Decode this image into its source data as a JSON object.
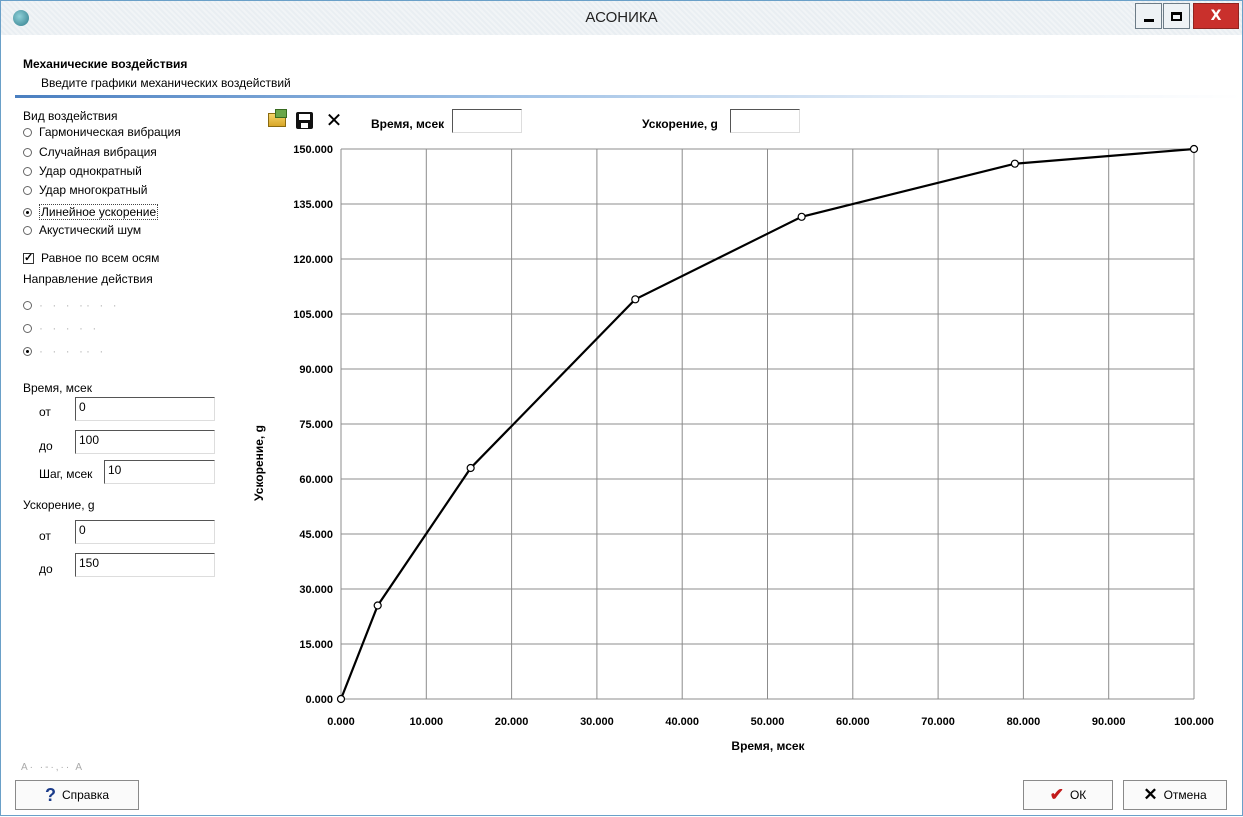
{
  "window": {
    "title": "АСОНИКА"
  },
  "header": {
    "title": "Механические воздействия",
    "subtitle": "Введите графики механических воздействий"
  },
  "left_panel": {
    "impact_type_label": "Вид воздействия",
    "impact_types": [
      {
        "label": "Гармоническая вибрация",
        "selected": false
      },
      {
        "label": "Случайная вибрация",
        "selected": false
      },
      {
        "label": "Удар однократный",
        "selected": false
      },
      {
        "label": "Удар многократный",
        "selected": false
      },
      {
        "label": "Линейное ускорение",
        "selected": true
      },
      {
        "label": "Акустический шум",
        "selected": false
      }
    ],
    "equal_all_axes": {
      "label": "Равное по всем осям",
      "checked": true
    },
    "direction_label": "Направление действия",
    "direction_options": [
      {
        "label": "· · · ·· · ·",
        "selected": false
      },
      {
        "label": "· · · · ·",
        "selected": false
      },
      {
        "label": "· · · ·· ·",
        "selected": true
      }
    ],
    "time": {
      "label": "Время, мсек",
      "from_label": "от",
      "from_value": "0",
      "to_label": "до",
      "to_value": "100",
      "step_label": "Шаг, мсек",
      "step_value": "10"
    },
    "accel": {
      "label": "Ускорение, g",
      "from_label": "от",
      "from_value": "0",
      "to_label": "до",
      "to_value": "150"
    },
    "corner_note": "A· ·-·,·· A"
  },
  "toolbar": {
    "open_icon": "folder-open-icon",
    "save_icon": "floppy-disk-icon",
    "clear_icon": "x-icon",
    "time_label": "Время, мсек",
    "time_value": "",
    "accel_label": "Ускорение, g",
    "accel_value": ""
  },
  "chart_data": {
    "type": "line",
    "title": "",
    "xlabel": "Время, мсек",
    "ylabel": "Ускорение, g",
    "xlim": [
      0,
      100
    ],
    "ylim": [
      0,
      150
    ],
    "x_ticks": [
      0,
      10,
      20,
      30,
      40,
      50,
      60,
      70,
      80,
      90,
      100
    ],
    "y_ticks": [
      0,
      15,
      30,
      45,
      60,
      75,
      90,
      105,
      120,
      135,
      150
    ],
    "x_tick_labels": [
      "0.000",
      "10.000",
      "20.000",
      "30.000",
      "40.000",
      "50.000",
      "60.000",
      "70.000",
      "80.000",
      "90.000",
      "100.000"
    ],
    "y_tick_labels": [
      "0.000",
      "15.000",
      "30.000",
      "45.000",
      "60.000",
      "75.000",
      "90.000",
      "105.000",
      "120.000",
      "135.000",
      "150.000"
    ],
    "grid": true,
    "series": [
      {
        "points": [
          {
            "x": 0,
            "y": 0
          },
          {
            "x": 4.3,
            "y": 25.5
          },
          {
            "x": 15.2,
            "y": 63
          },
          {
            "x": 34.5,
            "y": 109
          },
          {
            "x": 54,
            "y": 131.5
          },
          {
            "x": 79,
            "y": 146
          },
          {
            "x": 100,
            "y": 150
          }
        ]
      }
    ]
  },
  "buttons": {
    "help_label": "Справка",
    "ok_label": "ОК",
    "cancel_label": "Отмена"
  }
}
